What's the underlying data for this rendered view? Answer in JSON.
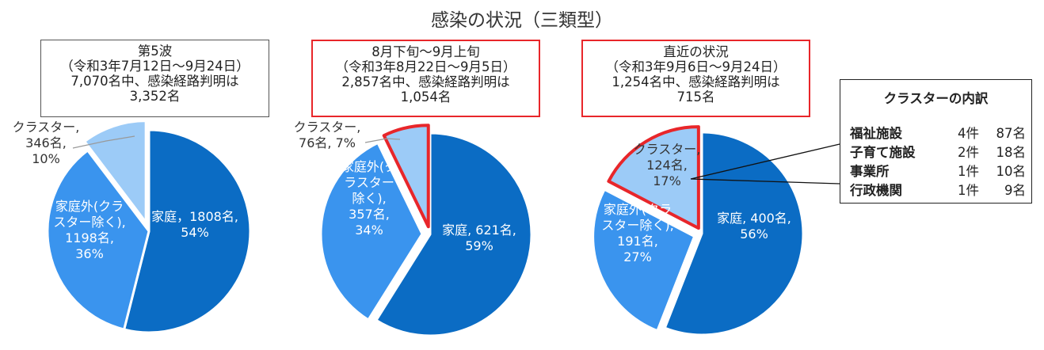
{
  "title": "感染の状況（三類型）",
  "colors": {
    "katei": "#0b6cc4",
    "kateigai": "#3a94ee",
    "cluster": "#9ccbf7",
    "highlight": "#e8262a"
  },
  "panels": [
    {
      "header": [
        "第5波",
        "（令和3年7月12日～9月24日）",
        "7,070名中、感染経路判明は",
        "3,352名"
      ]
    },
    {
      "header": [
        "8月下旬～9月上旬",
        "（令和3年8月22日～9月5日）",
        "2,857名中、感染経路判明は",
        "1,054名"
      ]
    },
    {
      "header": [
        "直近の状況",
        "（令和3年9月6日～9月24日）",
        "1,254名中、感染経路判明は",
        "715名"
      ]
    }
  ],
  "chart_data": [
    {
      "type": "pie",
      "title": "第5波",
      "slices": [
        {
          "name": "家庭",
          "value": 1808,
          "percent": 54,
          "label": [
            "家庭，1808名,",
            "54%"
          ]
        },
        {
          "name": "家庭外(クラスター除く)",
          "value": 1198,
          "percent": 36,
          "label": [
            "家庭外(クラ",
            "スター除く),",
            "1198名,",
            "36%"
          ]
        },
        {
          "name": "クラスター",
          "value": 346,
          "percent": 10,
          "label": [
            "クラスター,",
            "346名,",
            "10%"
          ]
        }
      ]
    },
    {
      "type": "pie",
      "title": "8月下旬～9月上旬",
      "slices": [
        {
          "name": "家庭",
          "value": 621,
          "percent": 59,
          "label": [
            "家庭, 621名,",
            "59%"
          ]
        },
        {
          "name": "家庭外(クラスター除く)",
          "value": 357,
          "percent": 34,
          "label": [
            "家庭外(ク",
            "ラスター",
            "除く),",
            "357名,",
            "34%"
          ]
        },
        {
          "name": "クラスター",
          "value": 76,
          "percent": 7,
          "label": [
            "クラスター,",
            "76名, 7%"
          ]
        }
      ]
    },
    {
      "type": "pie",
      "title": "直近の状況",
      "slices": [
        {
          "name": "家庭",
          "value": 400,
          "percent": 56,
          "label": [
            "家庭, 400名,",
            "56%"
          ]
        },
        {
          "name": "家庭外(クラスター除く)",
          "value": 191,
          "percent": 27,
          "label": [
            "家庭外(クラ",
            "スター除く),",
            "191名,",
            "27%"
          ]
        },
        {
          "name": "クラスター",
          "value": 124,
          "percent": 17,
          "label": [
            "クラスター,",
            "124名,",
            "17%"
          ]
        }
      ]
    }
  ],
  "cluster_breakdown": {
    "title": "クラスターの内訳",
    "rows": [
      {
        "category": "福祉施設",
        "cases": "4件",
        "people": "87名"
      },
      {
        "category": "子育て施設",
        "cases": "2件",
        "people": "18名"
      },
      {
        "category": "事業所",
        "cases": "1件",
        "people": "10名"
      },
      {
        "category": "行政機関",
        "cases": "1件",
        "people": "9名"
      }
    ]
  }
}
